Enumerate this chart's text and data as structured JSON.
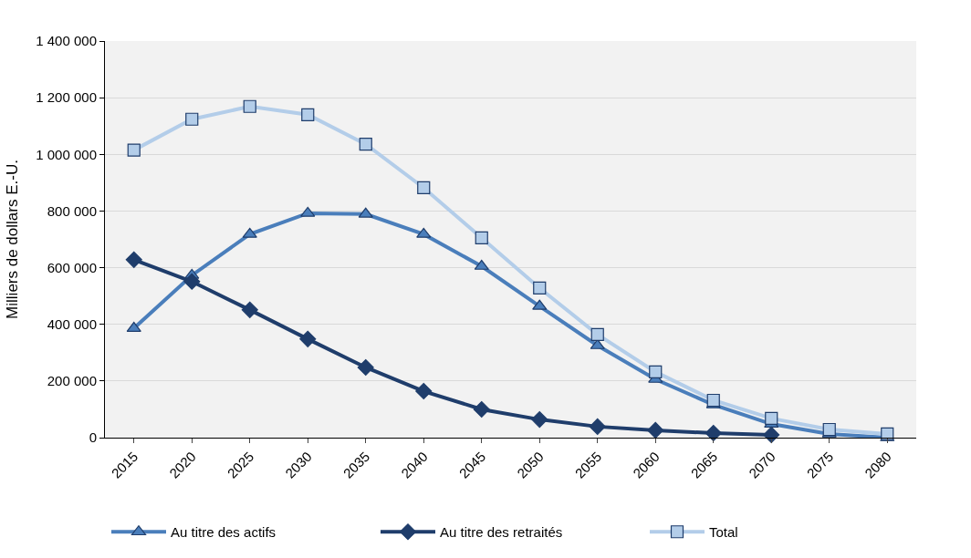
{
  "chart_data": {
    "type": "line",
    "ylabel": "Milliers de dollars E.-U.",
    "categories": [
      "2015",
      "2020",
      "2025",
      "2030",
      "2035",
      "2040",
      "2045",
      "2050",
      "2055",
      "2060",
      "2065",
      "2070",
      "2075",
      "2080"
    ],
    "series": [
      {
        "name": "Au titre des actifs",
        "color": "#4a7ebb",
        "marker": "triangle",
        "values": [
          386000,
          573000,
          718000,
          792000,
          789000,
          718000,
          605000,
          464000,
          325000,
          206000,
          116000,
          48000,
          13000,
          0
        ]
      },
      {
        "name": "Au titre des retraités",
        "color": "#1f3d6b",
        "marker": "diamond",
        "values": [
          628000,
          551000,
          451000,
          348000,
          248000,
          164000,
          100000,
          64000,
          39000,
          26000,
          16000,
          10000,
          null,
          null
        ]
      },
      {
        "name": "Total",
        "color": "#b3cde9",
        "marker": "square",
        "values": [
          1015000,
          1124000,
          1169000,
          1140000,
          1036000,
          882000,
          705000,
          528000,
          364000,
          232000,
          132000,
          68000,
          29000,
          13000
        ]
      }
    ],
    "ylim": [
      0,
      1400000
    ],
    "yticks": [
      0,
      {
        "value": 200000,
        "label": "200 000"
      },
      {
        "value": 400000,
        "label": "400 000"
      },
      {
        "value": 600000,
        "label": "600 000"
      },
      {
        "value": 800000,
        "label": "800 000"
      },
      {
        "value": 1000000,
        "label": "1 000 000"
      },
      {
        "value": 1200000,
        "label": "1 200 000"
      },
      {
        "value": 1400000,
        "label": "1 400 000"
      }
    ],
    "grid": "y",
    "legend": "bottom",
    "line_style": "solid"
  }
}
